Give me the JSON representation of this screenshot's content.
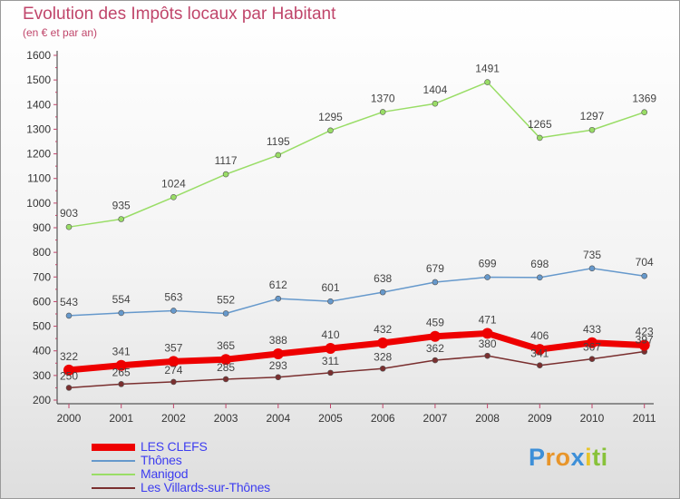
{
  "chart_data": {
    "type": "line",
    "title": "Evolution des Impôts locaux par Habitant",
    "subtitle": "(en € et par an)",
    "x": [
      "2000",
      "2001",
      "2002",
      "2003",
      "2004",
      "2005",
      "2006",
      "2007",
      "2008",
      "2009",
      "2010",
      "2011"
    ],
    "ylim": [
      200,
      1600
    ],
    "yticks": [
      200,
      300,
      400,
      500,
      600,
      700,
      800,
      900,
      1000,
      1100,
      1200,
      1300,
      1400,
      1500,
      1600
    ],
    "grid": false,
    "legend_position": "bottom-left",
    "series": [
      {
        "name": "LES CLEFS",
        "color": "#ee0000",
        "values": [
          322,
          341,
          357,
          365,
          388,
          410,
          432,
          459,
          471,
          406,
          433,
          423
        ]
      },
      {
        "name": "Thônes",
        "color": "#6699cc",
        "values": [
          543,
          554,
          563,
          552,
          612,
          601,
          638,
          679,
          699,
          698,
          735,
          704
        ]
      },
      {
        "name": "Manigod",
        "color": "#99dd66",
        "values": [
          903,
          935,
          1024,
          1117,
          1195,
          1295,
          1370,
          1404,
          1491,
          1265,
          1297,
          1369
        ]
      },
      {
        "name": "Les Villards-sur-Thônes",
        "color": "#7a2f2f",
        "values": [
          250,
          265,
          274,
          285,
          293,
          311,
          328,
          362,
          380,
          341,
          367,
          397
        ]
      }
    ]
  },
  "brand": {
    "letters": [
      "P",
      "r",
      "o",
      "x",
      "i",
      "t",
      "i"
    ],
    "colors": [
      "#3d8fd8",
      "#e8952a",
      "#e8952a",
      "#3d8fd8",
      "#e8c42a",
      "#88c23a",
      "#88c23a"
    ]
  }
}
